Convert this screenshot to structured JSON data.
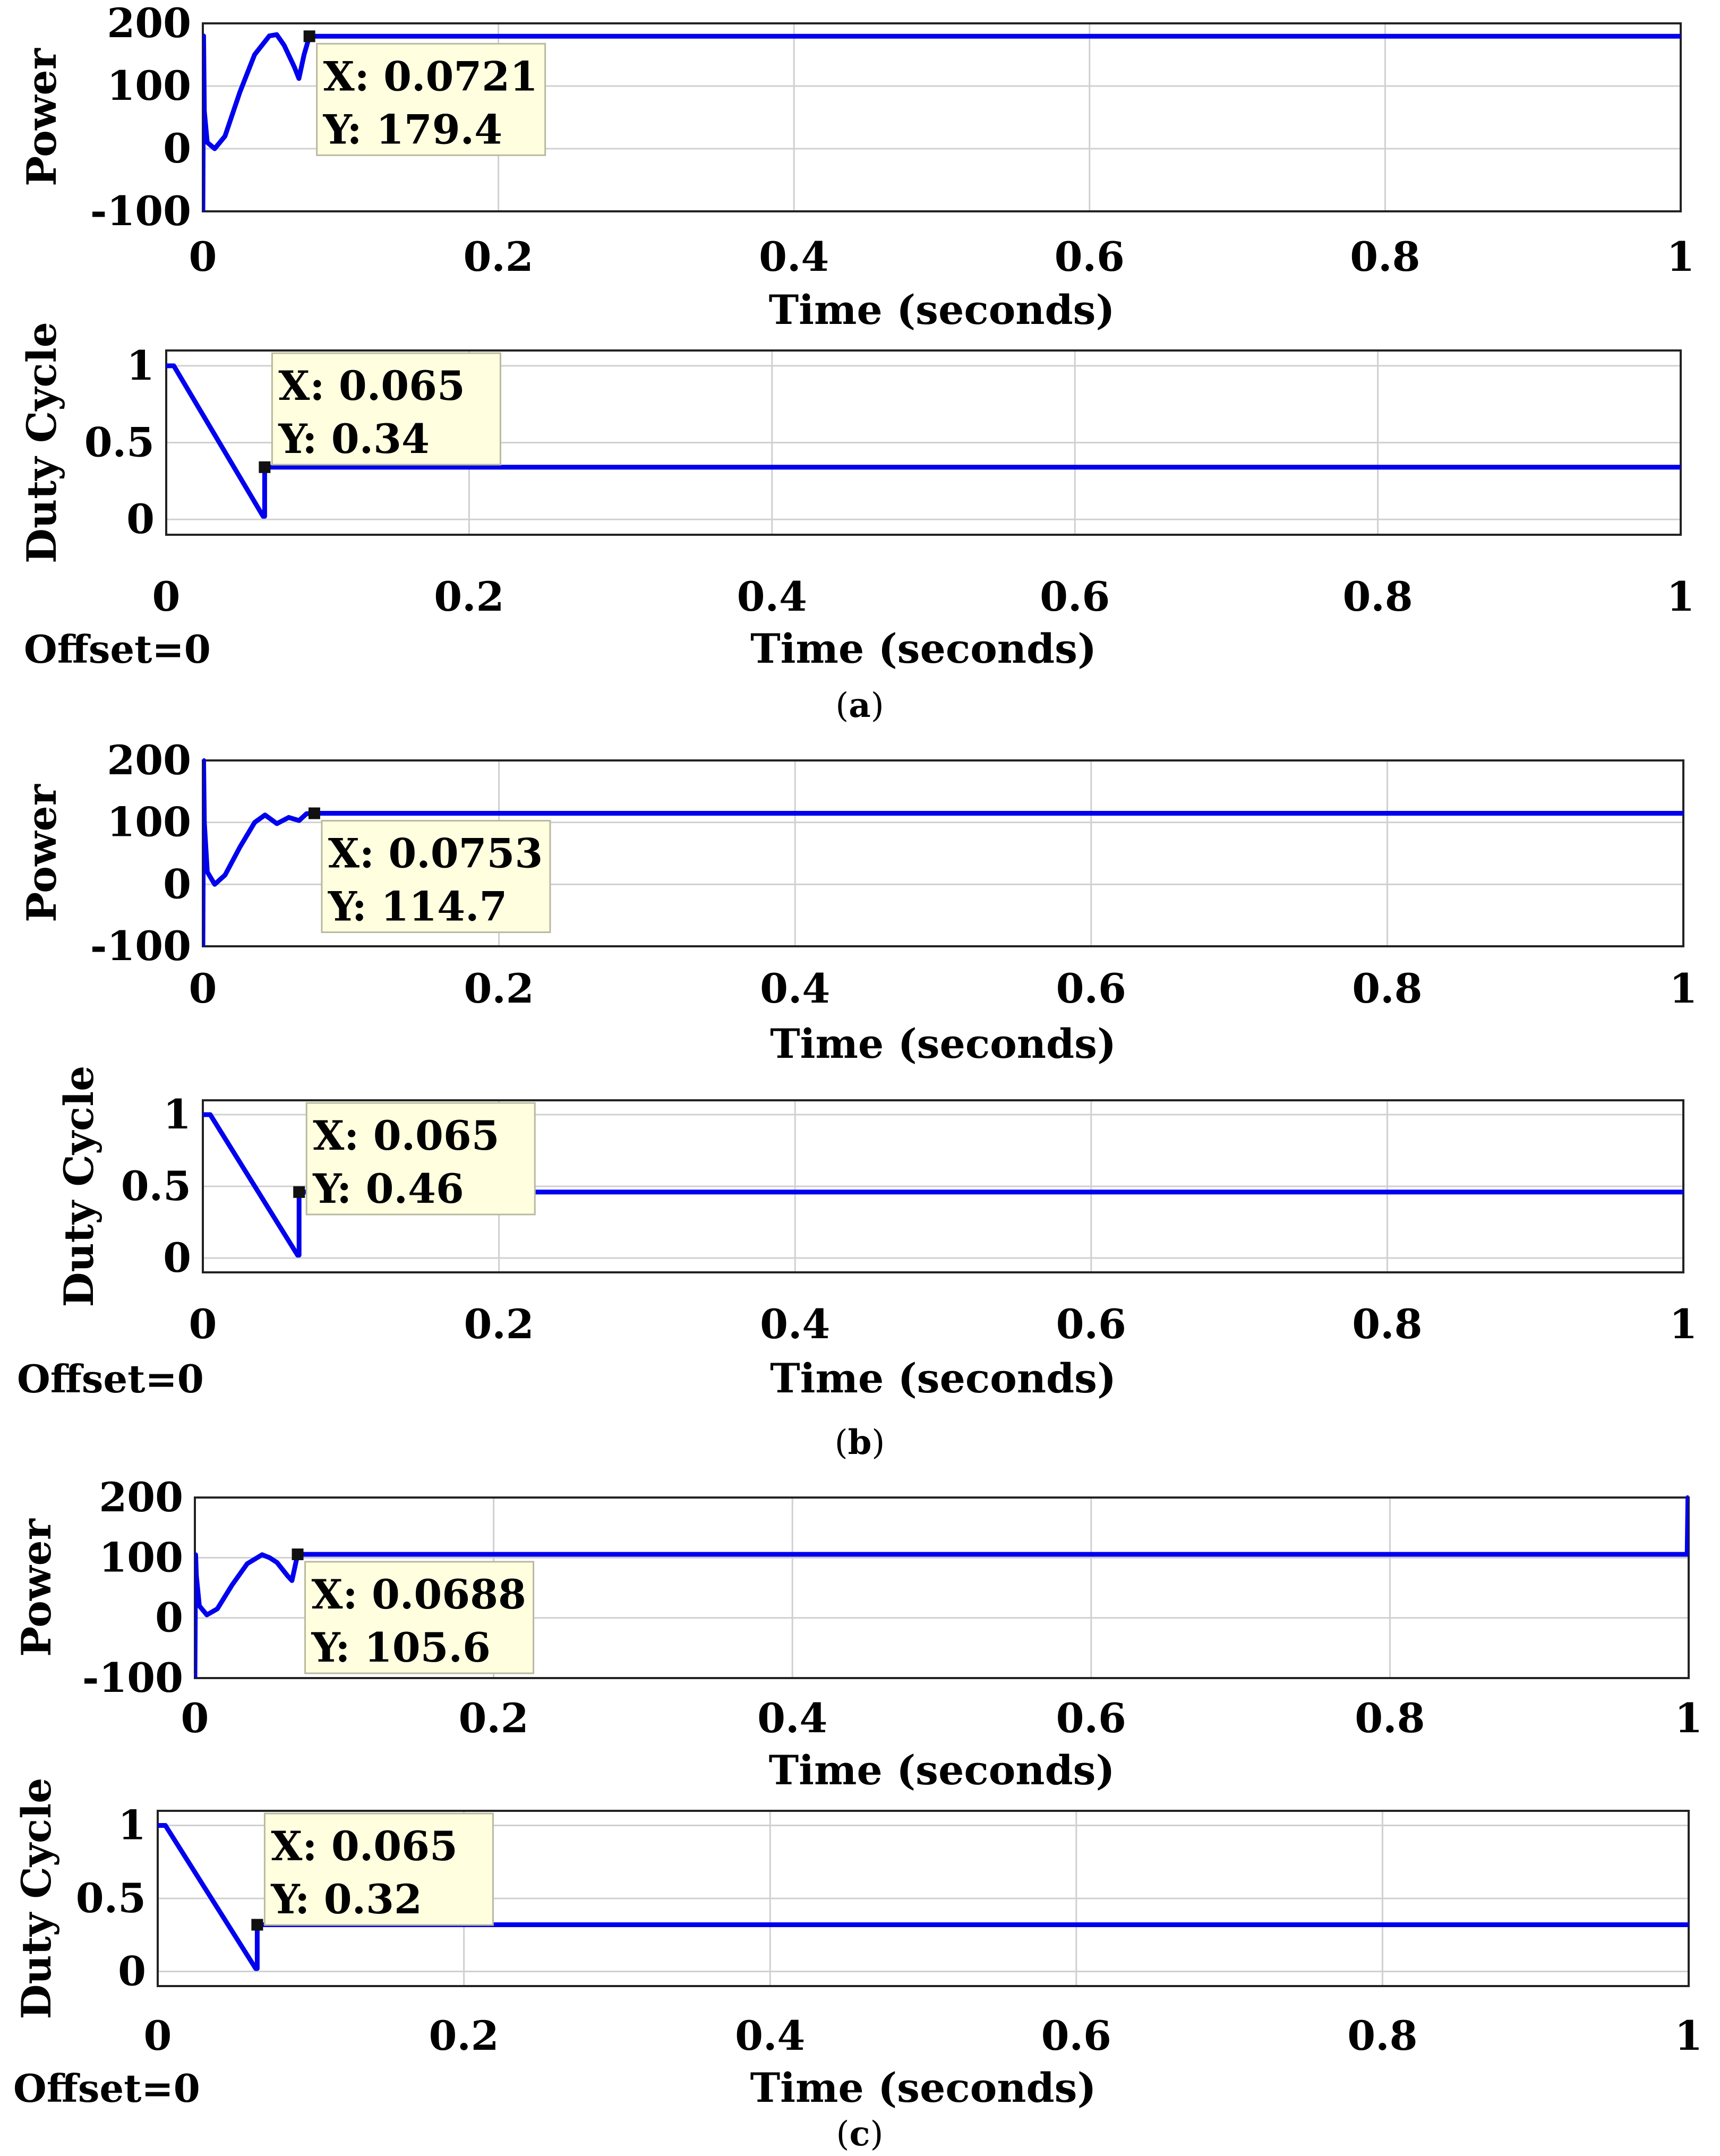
{
  "colors": {
    "series": "#0000ee",
    "grid": "#d0d0d0",
    "tip_bg": "#ffffe0"
  },
  "chart_data": [
    {
      "panel": "a",
      "type": "line",
      "ylabel": "Power",
      "xlabel": "Time (seconds)",
      "xlim": [
        0,
        1
      ],
      "ylim": [
        -100,
        200
      ],
      "xticks": [
        "0",
        "0.2",
        "0.4",
        "0.6",
        "0.8",
        "1"
      ],
      "yticks": [
        "200",
        "100",
        "0",
        "-100"
      ],
      "yvals": [
        200,
        100,
        0,
        -100
      ],
      "series": [
        {
          "name": "Power",
          "x": [
            0,
            0.0005,
            0.001,
            0.003,
            0.008,
            0.015,
            0.025,
            0.035,
            0.045,
            0.05,
            0.055,
            0.062,
            0.065,
            0.0685,
            0.0721,
            1.0
          ],
          "y": [
            -100,
            180,
            60,
            10,
            0,
            20,
            90,
            150,
            180,
            182,
            165,
            130,
            112,
            150,
            179.4,
            179.4
          ]
        }
      ],
      "datatip": {
        "x_label": "X: 0.0721",
        "y_label": "Y: 179.4",
        "x": 0.0721,
        "y": 179.4
      }
    },
    {
      "panel": "a",
      "type": "line",
      "ylabel": "Duty Cycle",
      "xlabel": "Time (seconds)",
      "xlim": [
        0,
        1
      ],
      "ylim": [
        -0.1,
        1.1
      ],
      "xticks": [
        "0",
        "0.2",
        "0.4",
        "0.6",
        "0.8",
        "1"
      ],
      "yticks": [
        "1",
        "0.5",
        "0"
      ],
      "yvals": [
        1,
        0.5,
        0
      ],
      "series": [
        {
          "name": "Duty Cycle",
          "x": [
            0,
            0.005,
            0.064,
            0.065,
            0.065,
            1.0
          ],
          "y": [
            1,
            1,
            0.02,
            0.02,
            0.34,
            0.34
          ]
        }
      ],
      "datatip": {
        "x_label": "X: 0.065",
        "y_label": "Y: 0.34",
        "x": 0.065,
        "y": 0.34
      },
      "note": "Offset=0"
    },
    {
      "panel": "b",
      "type": "line",
      "ylabel": "Power",
      "xlabel": "Time (seconds)",
      "xlim": [
        0,
        1
      ],
      "ylim": [
        -100,
        200
      ],
      "xticks": [
        "0",
        "0.2",
        "0.4",
        "0.6",
        "0.8",
        "1"
      ],
      "yticks": [
        "200",
        "100",
        "0",
        "-100"
      ],
      "yvals": [
        200,
        100,
        0,
        -100
      ],
      "series": [
        {
          "name": "Power",
          "x": [
            0,
            0.0005,
            0.001,
            0.003,
            0.008,
            0.015,
            0.025,
            0.035,
            0.042,
            0.05,
            0.058,
            0.065,
            0.07,
            0.0753,
            1.0
          ],
          "y": [
            -100,
            200,
            100,
            20,
            0,
            15,
            60,
            100,
            112,
            98,
            108,
            103,
            114,
            114.7,
            114.7
          ]
        }
      ],
      "datatip": {
        "x_label": "X: 0.0753",
        "y_label": "Y: 114.7",
        "x": 0.0753,
        "y": 114.7
      }
    },
    {
      "panel": "b",
      "type": "line",
      "ylabel": "Duty Cycle",
      "xlabel": "Time (seconds)",
      "xlim": [
        0,
        1
      ],
      "ylim": [
        -0.1,
        1.1
      ],
      "xticks": [
        "0",
        "0.2",
        "0.4",
        "0.6",
        "0.8",
        "1"
      ],
      "yticks": [
        "1",
        "0.5",
        "0"
      ],
      "yvals": [
        1,
        0.5,
        0
      ],
      "series": [
        {
          "name": "Duty Cycle",
          "x": [
            0,
            0.005,
            0.064,
            0.065,
            0.065,
            1.0
          ],
          "y": [
            1,
            1,
            0.02,
            0.02,
            0.46,
            0.46
          ]
        }
      ],
      "datatip": {
        "x_label": "X: 0.065",
        "y_label": "Y: 0.46",
        "x": 0.065,
        "y": 0.46
      },
      "note": "Offset=0"
    },
    {
      "panel": "c",
      "type": "line",
      "ylabel": "Power",
      "xlabel": "Time (seconds)",
      "xlim": [
        0,
        1
      ],
      "ylim": [
        -100,
        200
      ],
      "xticks": [
        "0",
        "0.2",
        "0.4",
        "0.6",
        "0.8",
        "1"
      ],
      "yticks": [
        "200",
        "100",
        "0",
        "-100"
      ],
      "yvals": [
        200,
        100,
        0,
        -100
      ],
      "series": [
        {
          "name": "Power",
          "x": [
            0,
            0.0005,
            0.001,
            0.003,
            0.008,
            0.015,
            0.025,
            0.035,
            0.045,
            0.05,
            0.055,
            0.062,
            0.065,
            0.0688,
            0.999,
            0.9995,
            1.0
          ],
          "y": [
            -100,
            105,
            70,
            20,
            5,
            15,
            55,
            90,
            105,
            100,
            92,
            70,
            62,
            105.6,
            105.6,
            200,
            105.6
          ]
        }
      ],
      "datatip": {
        "x_label": "X: 0.0688",
        "y_label": "Y: 105.6",
        "x": 0.0688,
        "y": 105.6
      }
    },
    {
      "panel": "c",
      "type": "line",
      "ylabel": "Duty Cycle",
      "xlabel": "Time (seconds)",
      "xlim": [
        0,
        1
      ],
      "ylim": [
        -0.1,
        1.1
      ],
      "xticks": [
        "0",
        "0.2",
        "0.4",
        "0.6",
        "0.8",
        "1"
      ],
      "yticks": [
        "1",
        "0.5",
        "0"
      ],
      "yvals": [
        1,
        0.5,
        0
      ],
      "series": [
        {
          "name": "Duty Cycle",
          "x": [
            0,
            0.005,
            0.064,
            0.065,
            0.065,
            1.0
          ],
          "y": [
            1,
            1,
            0.02,
            0.02,
            0.32,
            0.32
          ]
        }
      ],
      "datatip": {
        "x_label": "X: 0.065",
        "y_label": "Y: 0.32",
        "x": 0.065,
        "y": 0.32
      },
      "note": "Offset=0"
    }
  ],
  "captions": [
    {
      "open": "(",
      "letter": "a",
      "close": ")"
    },
    {
      "open": "(",
      "letter": "b",
      "close": ")"
    },
    {
      "open": "(",
      "letter": "c",
      "close": ")"
    }
  ]
}
